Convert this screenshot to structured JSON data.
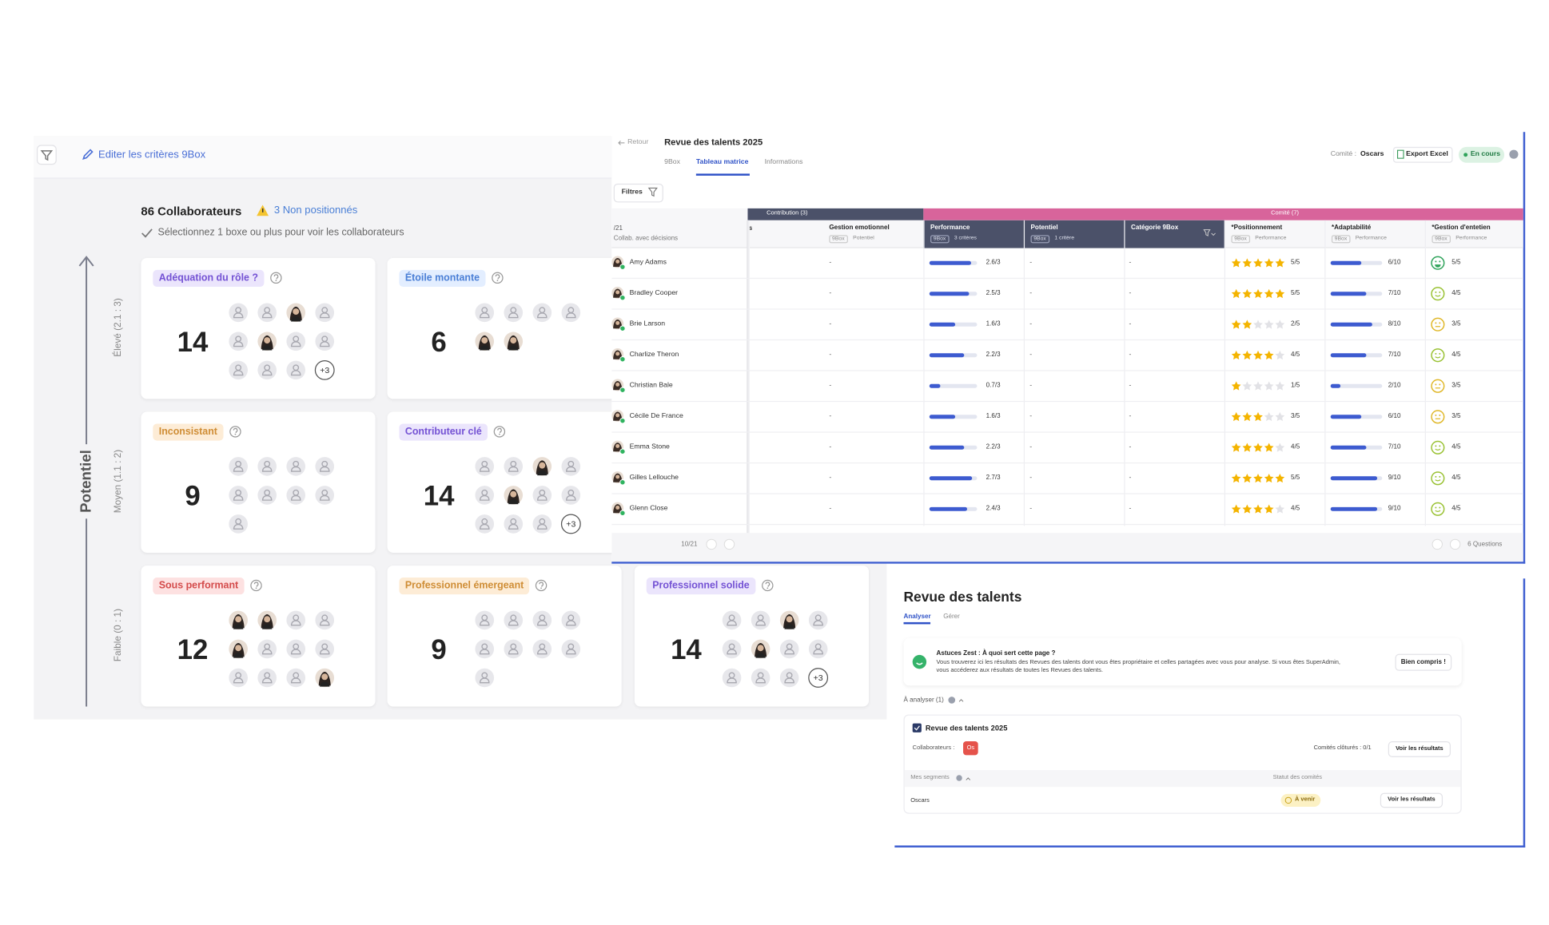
{
  "ninebox": {
    "edit_label": "Editer les critères 9Box",
    "count": "86 Collaborateurs",
    "warning": "3 Non positionnés",
    "hint": "Sélectionnez 1 boxe ou plus pour voir les collaborateurs",
    "axis": "Potentiel",
    "levels": [
      "Élevé (2.1 : 3)",
      "Moyen (1.1 : 2)",
      "Faible (0 : 1)"
    ],
    "boxes": [
      {
        "label": "Adéquation du rôle ?",
        "count": 14,
        "more": "+3"
      },
      {
        "label": "Étoile montante",
        "count": 6
      },
      {
        "label": "Inconsistant",
        "count": 9
      },
      {
        "label": "Contributeur clé",
        "count": 14,
        "more": "+3"
      },
      {
        "label": "Sous performant",
        "count": 12
      },
      {
        "label": "Professionnel émergeant",
        "count": 9
      },
      {
        "label": "Professionnel solide",
        "count": 14,
        "more": "+3"
      }
    ]
  },
  "matrix": {
    "back": "Retour",
    "title": "Revue des talents 2025",
    "tabs": [
      "9Box",
      "Tableau matrice",
      "Informations"
    ],
    "committee_label": "Comité :",
    "committee": "Oscars",
    "export": "Export Excel",
    "status": "En cours",
    "filters": "Filtres",
    "groups": [
      "Contribution (3)",
      "Comité (7)"
    ],
    "first_col": {
      "title": "/21",
      "sub": "Collab. avec décisions"
    },
    "partial_col": "s",
    "columns": [
      {
        "title": "Gestion emotionnel",
        "tags": [
          "9Box",
          "Potentiel"
        ]
      },
      {
        "title": "Performance",
        "tags": [
          "9Box",
          "3 critères"
        ]
      },
      {
        "title": "Potentiel",
        "tags": [
          "9Box",
          "1 critère"
        ]
      },
      {
        "title": "Catégorie 9Box",
        "tags": []
      },
      {
        "title": "*Positionnement",
        "tags": [
          "9Box",
          "Performance"
        ]
      },
      {
        "title": "*Adaptabilité",
        "tags": [
          "9Box",
          "Performance"
        ]
      },
      {
        "title": "*Gestion d'entetien",
        "tags": [
          "9Box",
          "Performance"
        ]
      }
    ],
    "rows": [
      {
        "name": "Amy Adams",
        "gestion": "-",
        "performance": "2.6/3",
        "potentiel": "-",
        "categorie": "-",
        "positionnement": "5/5",
        "adaptabilite": "6/10",
        "entretien": "5/5"
      },
      {
        "name": "Bradley Cooper",
        "gestion": "-",
        "performance": "2.5/3",
        "potentiel": "-",
        "categorie": "-",
        "positionnement": "5/5",
        "adaptabilite": "7/10",
        "entretien": "4/5"
      },
      {
        "name": "Brie Larson",
        "gestion": "-",
        "performance": "1.6/3",
        "potentiel": "-",
        "categorie": "-",
        "positionnement": "2/5",
        "adaptabilite": "8/10",
        "entretien": "3/5"
      },
      {
        "name": "Charlize Theron",
        "gestion": "-",
        "performance": "2.2/3",
        "potentiel": "-",
        "categorie": "-",
        "positionnement": "4/5",
        "adaptabilite": "7/10",
        "entretien": "4/5"
      },
      {
        "name": "Christian Bale",
        "gestion": "-",
        "performance": "0.7/3",
        "potentiel": "-",
        "categorie": "-",
        "positionnement": "1/5",
        "adaptabilite": "2/10",
        "entretien": "3/5"
      },
      {
        "name": "Cécile De France",
        "gestion": "-",
        "performance": "1.6/3",
        "potentiel": "-",
        "categorie": "-",
        "positionnement": "3/5",
        "adaptabilite": "6/10",
        "entretien": "3/5"
      },
      {
        "name": "Emma Stone",
        "gestion": "-",
        "performance": "2.2/3",
        "potentiel": "-",
        "categorie": "-",
        "positionnement": "4/5",
        "adaptabilite": "7/10",
        "entretien": "4/5"
      },
      {
        "name": "Gilles Lellouche",
        "gestion": "-",
        "performance": "2.7/3",
        "potentiel": "-",
        "categorie": "-",
        "positionnement": "5/5",
        "adaptabilite": "9/10",
        "entretien": "4/5"
      },
      {
        "name": "Glenn Close",
        "gestion": "-",
        "performance": "2.4/3",
        "potentiel": "-",
        "categorie": "-",
        "positionnement": "4/5",
        "adaptabilite": "9/10",
        "entretien": "4/5"
      }
    ],
    "pager": "10/21",
    "questions": "6 Questions"
  },
  "review": {
    "title": "Revue des talents",
    "tabs": [
      "Analyser",
      "Gérer"
    ],
    "tip_title": "Astuces Zest : À quoi sert cette page ?",
    "tip_body": "Vous trouverez ici les résultats des Revues des talents dont vous êtes propriétaire et celles partagées avec vous pour analyse. Si vous êtes SuperAdmin, vous accéderez aux résultats de toutes les Revues des talents.",
    "tip_button": "Bien compris !",
    "section": "À analyser (1)",
    "item_title": "Revue des talents 2025",
    "collaborators_label": "Collaborateurs :",
    "badge": "Os",
    "closed": "Comités clôturés : 0/1",
    "results_button": "Voir les résultats",
    "segments_header": "Mes segments",
    "status_header": "Statut des comités",
    "segment": "Oscars",
    "segment_status": "À venir",
    "segment_button": "Voir les résultats"
  }
}
